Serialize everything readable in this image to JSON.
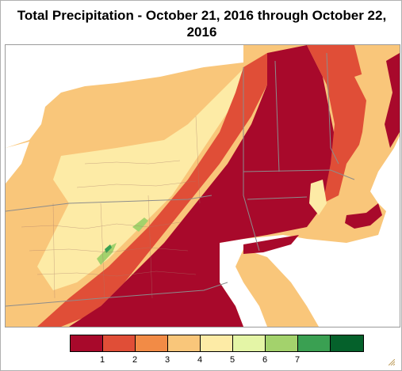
{
  "title_line1": "Total Precipitation - October 21, 2016 through October 22,",
  "title_line2": "2016",
  "legend": {
    "colors": [
      "#a8092b",
      "#e04e37",
      "#f28b46",
      "#f9c67a",
      "#fdeba6",
      "#e4f5a6",
      "#a3d26c",
      "#3aa052",
      "#05612b"
    ],
    "ticks": [
      "1",
      "2",
      "3",
      "4",
      "5",
      "6",
      "7"
    ]
  },
  "colors": {
    "land_low": "#fdeba6",
    "land_mid": "#f9c67a",
    "land_orange": "#f28b46",
    "land_red": "#e04e37",
    "land_dark": "#a8092b",
    "water": "#ffffff",
    "boundary": "#8c8c8c"
  },
  "icons": {
    "resize": "resize-grip-icon"
  }
}
